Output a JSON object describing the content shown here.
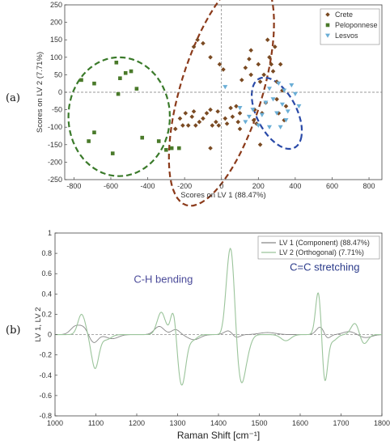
{
  "panel_labels": [
    "(a)",
    "(b)"
  ],
  "chart_data": [
    {
      "type": "scatter",
      "xlabel": "Scores on LV 1 (88.47%)",
      "ylabel": "Scores on LV 2 (7.71%)",
      "xlim": [
        -850,
        870
      ],
      "ylim": [
        -250,
        250
      ],
      "xticks": [
        -800,
        -600,
        -400,
        -200,
        0,
        200,
        400,
        600,
        800
      ],
      "yticks": [
        -250,
        -200,
        -150,
        -100,
        -50,
        0,
        50,
        100,
        150,
        200,
        250
      ],
      "grid": false,
      "reference_lines": "dashed lines at x=0 and y=0",
      "legend": {
        "placement": "top-right",
        "entries": [
          "Crete",
          "Peloponnese",
          "Lesvos"
        ]
      },
      "series": [
        {
          "name": "Crete",
          "marker": "diamond",
          "color": "#7a4a22",
          "points": [
            [
              -250,
              -105
            ],
            [
              -225,
              -75
            ],
            [
              -210,
              -95
            ],
            [
              -195,
              -60
            ],
            [
              -180,
              -95
            ],
            [
              -160,
              -70
            ],
            [
              -150,
              -55
            ],
            [
              -140,
              -95
            ],
            [
              -120,
              -85
            ],
            [
              -100,
              -75
            ],
            [
              -80,
              -60
            ],
            [
              -60,
              -50
            ],
            [
              -50,
              -95
            ],
            [
              -30,
              -85
            ],
            [
              -20,
              -55
            ],
            [
              -15,
              -95
            ],
            [
              -130,
              150
            ],
            [
              -150,
              130
            ],
            [
              -100,
              140
            ],
            [
              -60,
              100
            ],
            [
              -10,
              80
            ],
            [
              10,
              65
            ],
            [
              20,
              -75
            ],
            [
              30,
              -90
            ],
            [
              50,
              -45
            ],
            [
              60,
              -70
            ],
            [
              80,
              -40
            ],
            [
              90,
              -85
            ],
            [
              100,
              -105
            ],
            [
              100,
              -60
            ],
            [
              110,
              35
            ],
            [
              130,
              70
            ],
            [
              150,
              95
            ],
            [
              160,
              120
            ],
            [
              160,
              50
            ],
            [
              175,
              -80
            ],
            [
              180,
              -50
            ],
            [
              190,
              -90
            ],
            [
              200,
              80
            ],
            [
              210,
              30
            ],
            [
              220,
              -60
            ],
            [
              230,
              50
            ],
            [
              240,
              -30
            ],
            [
              250,
              150
            ],
            [
              260,
              100
            ],
            [
              270,
              80
            ],
            [
              280,
              60
            ],
            [
              290,
              130
            ],
            [
              300,
              -20
            ],
            [
              300,
              30
            ],
            [
              310,
              -60
            ],
            [
              320,
              80
            ],
            [
              330,
              5
            ],
            [
              340,
              -80
            ],
            [
              350,
              -40
            ],
            [
              210,
              -150
            ],
            [
              -60,
              -160
            ]
          ]
        },
        {
          "name": "Peloponnese",
          "marker": "square",
          "color": "#4a7a2a",
          "points": [
            [
              -760,
              35
            ],
            [
              -690,
              25
            ],
            [
              -570,
              85
            ],
            [
              -550,
              40
            ],
            [
              -520,
              55
            ],
            [
              -490,
              60
            ],
            [
              -460,
              10
            ],
            [
              -560,
              -5
            ],
            [
              -720,
              -140
            ],
            [
              -690,
              -115
            ],
            [
              -590,
              -175
            ],
            [
              -430,
              -130
            ],
            [
              -340,
              -140
            ],
            [
              -300,
              -165
            ],
            [
              -270,
              -160
            ],
            [
              -230,
              -160
            ]
          ]
        },
        {
          "name": "Lesvos",
          "marker": "triangle-down",
          "color": "#6aaed6",
          "points": [
            [
              20,
              15
            ],
            [
              100,
              -45
            ],
            [
              130,
              -85
            ],
            [
              150,
              -70
            ],
            [
              170,
              -50
            ],
            [
              200,
              -95
            ],
            [
              220,
              -65
            ],
            [
              240,
              -30
            ],
            [
              260,
              10
            ],
            [
              280,
              -20
            ],
            [
              300,
              -60
            ],
            [
              310,
              25
            ],
            [
              330,
              -35
            ],
            [
              340,
              5
            ],
            [
              350,
              -80
            ],
            [
              360,
              -55
            ],
            [
              380,
              20
            ],
            [
              400,
              -5
            ],
            [
              420,
              -40
            ],
            [
              260,
              -100
            ],
            [
              320,
              -100
            ]
          ]
        }
      ],
      "ellipses": [
        {
          "group": "Peloponnese",
          "color": "#3a7a2a",
          "center": [
            -555,
            -70
          ],
          "radii": [
            275,
            170
          ],
          "angle_deg": 0
        },
        {
          "group": "Crete",
          "color": "#8b3a1a",
          "center": [
            0,
            5
          ],
          "radii": [
            390,
            195
          ],
          "angle_deg": 52
        },
        {
          "group": "Lesvos",
          "color": "#2a4aa8",
          "center": [
            300,
            -60
          ],
          "radii": [
            150,
            80
          ],
          "angle_deg": -30
        }
      ]
    },
    {
      "type": "line",
      "xlabel": "Raman Shift [cm⁻¹]",
      "ylabel": "LV 1, LV 2",
      "xlim": [
        1000,
        1800
      ],
      "ylim": [
        -0.8,
        1.0
      ],
      "xticks": [
        1000,
        1100,
        1200,
        1300,
        1400,
        1500,
        1600,
        1700,
        1800
      ],
      "yticks": [
        -0.8,
        -0.6,
        -0.4,
        -0.2,
        0,
        0.2,
        0.4,
        0.6,
        0.8,
        1
      ],
      "grid": false,
      "legend": {
        "placement": "top-right",
        "entries": [
          "LV 1 (Component) (88.47%)",
          "LV 2 (Orthogonal) (7.71%)"
        ]
      },
      "annotations": [
        {
          "text": "C-H bending",
          "x": 1265,
          "y": 0.51,
          "color": "#4a4a99"
        },
        {
          "text": "C=C stretching",
          "x": 1660,
          "y": 0.63,
          "color": "#2a3a8a"
        }
      ],
      "series": [
        {
          "name": "LV 1 (Component) (88.47%)",
          "color": "#888888",
          "base": 0.0,
          "peaks": [
            [
              1050,
              0.08,
              12
            ],
            [
              1070,
              0.06,
              10
            ],
            [
              1095,
              -0.08,
              10
            ],
            [
              1140,
              -0.04,
              15
            ],
            [
              1255,
              0.08,
              12
            ],
            [
              1295,
              0.05,
              10
            ],
            [
              1340,
              -0.05,
              15
            ],
            [
              1430,
              0.06,
              12
            ],
            [
              1440,
              -0.06,
              10
            ],
            [
              1520,
              0.02,
              20
            ],
            [
              1650,
              0.08,
              10
            ],
            [
              1665,
              -0.05,
              8
            ],
            [
              1720,
              0.03,
              15
            ],
            [
              1760,
              -0.03,
              15
            ]
          ]
        },
        {
          "name": "LV 2 (Orthogonal) (7.71%)",
          "color": "#9bc49b",
          "base": 0.0,
          "peaks": [
            [
              1065,
              0.2,
              9
            ],
            [
              1098,
              -0.33,
              9
            ],
            [
              1125,
              -0.05,
              12
            ],
            [
              1260,
              0.22,
              10
            ],
            [
              1290,
              0.26,
              7
            ],
            [
              1310,
              -0.5,
              10
            ],
            [
              1338,
              -0.05,
              10
            ],
            [
              1418,
              0.1,
              6
            ],
            [
              1430,
              0.85,
              9
            ],
            [
              1455,
              -0.44,
              10
            ],
            [
              1470,
              -0.12,
              10
            ],
            [
              1565,
              -0.06,
              12
            ],
            [
              1645,
              0.45,
              7
            ],
            [
              1660,
              -0.48,
              7
            ],
            [
              1680,
              -0.06,
              10
            ],
            [
              1735,
              0.12,
              10
            ],
            [
              1755,
              -0.1,
              10
            ]
          ]
        }
      ]
    }
  ]
}
